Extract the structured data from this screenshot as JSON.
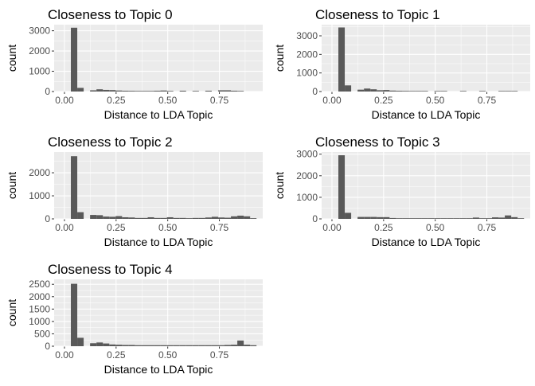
{
  "colors": {
    "panel": "#ebebeb",
    "grid_major": "#ffffff",
    "bar": "#595959",
    "tick_text": "#4d4d4d"
  },
  "chart_data": [
    {
      "type": "bar",
      "title": "Closeness to Topic 0",
      "xlabel": "Distance to LDA Topic",
      "ylabel": "count",
      "xlim": [
        -0.05,
        0.96
      ],
      "ylim": [
        0,
        3300
      ],
      "xticks": [
        0.0,
        0.25,
        0.5,
        0.75
      ],
      "xtick_labels": [
        "0.00",
        "0.25",
        "0.50",
        "0.75"
      ],
      "yticks": [
        0,
        1000,
        2000,
        3000
      ],
      "ytick_labels": [
        "0",
        "1000",
        "2000",
        "3000"
      ],
      "bin_width": 0.031,
      "bins_start": 0.0,
      "values": [
        0,
        3150,
        180,
        0,
        60,
        110,
        80,
        70,
        50,
        40,
        35,
        30,
        30,
        30,
        40,
        50,
        30,
        0,
        40,
        0,
        30,
        0,
        40,
        0,
        60,
        60,
        40,
        30,
        0,
        0
      ]
    },
    {
      "type": "bar",
      "title": "Closeness to Topic 1",
      "xlabel": "Distance to LDA Topic",
      "ylabel": "count",
      "xlim": [
        -0.05,
        0.96
      ],
      "ylim": [
        0,
        3600
      ],
      "xticks": [
        0.0,
        0.25,
        0.5,
        0.75
      ],
      "xtick_labels": [
        "0.00",
        "0.25",
        "0.50",
        "0.75"
      ],
      "yticks": [
        0,
        1000,
        2000,
        3000
      ],
      "ytick_labels": [
        "0",
        "1000",
        "2000",
        "3000"
      ],
      "bin_width": 0.031,
      "bins_start": 0.0,
      "values": [
        0,
        3450,
        330,
        0,
        100,
        160,
        120,
        70,
        80,
        50,
        40,
        35,
        30,
        30,
        30,
        0,
        30,
        30,
        0,
        0,
        30,
        0,
        0,
        30,
        0,
        0,
        30,
        30,
        30,
        0
      ]
    },
    {
      "type": "bar",
      "title": "Closeness to Topic 2",
      "xlabel": "Distance to LDA Topic",
      "ylabel": "count",
      "xlim": [
        -0.05,
        0.96
      ],
      "ylim": [
        0,
        2900
      ],
      "xticks": [
        0.0,
        0.25,
        0.5,
        0.75
      ],
      "xtick_labels": [
        "0.00",
        "0.25",
        "0.50",
        "0.75"
      ],
      "yticks": [
        0,
        1000,
        2000
      ],
      "ytick_labels": [
        "0",
        "1000",
        "2000"
      ],
      "bin_width": 0.031,
      "bins_start": 0.0,
      "values": [
        0,
        2720,
        290,
        0,
        170,
        160,
        100,
        90,
        120,
        70,
        60,
        40,
        40,
        70,
        40,
        40,
        70,
        40,
        40,
        30,
        40,
        40,
        60,
        90,
        60,
        50,
        110,
        140,
        110,
        30
      ]
    },
    {
      "type": "bar",
      "title": "Closeness to Topic 3",
      "xlabel": "Distance to LDA Topic",
      "ylabel": "count",
      "xlim": [
        -0.05,
        0.96
      ],
      "ylim": [
        0,
        3100
      ],
      "xticks": [
        0.0,
        0.25,
        0.5,
        0.75
      ],
      "xtick_labels": [
        "0.00",
        "0.25",
        "0.50",
        "0.75"
      ],
      "yticks": [
        0,
        1000,
        2000,
        3000
      ],
      "ytick_labels": [
        "0",
        "1000",
        "2000",
        "3000"
      ],
      "bin_width": 0.031,
      "bins_start": 0.0,
      "values": [
        0,
        2950,
        280,
        0,
        90,
        90,
        90,
        80,
        80,
        40,
        30,
        30,
        30,
        30,
        30,
        30,
        30,
        30,
        30,
        30,
        30,
        30,
        60,
        30,
        30,
        70,
        60,
        160,
        80,
        30
      ]
    },
    {
      "type": "bar",
      "title": "Closeness to Topic 4",
      "xlabel": "Distance to LDA Topic",
      "ylabel": "count",
      "xlim": [
        -0.05,
        0.96
      ],
      "ylim": [
        0,
        2700
      ],
      "xticks": [
        0.0,
        0.25,
        0.5,
        0.75
      ],
      "xtick_labels": [
        "0.00",
        "0.25",
        "0.50",
        "0.75"
      ],
      "yticks": [
        0,
        500,
        1000,
        1500,
        2000,
        2500
      ],
      "ytick_labels": [
        "0",
        "500",
        "1000",
        "1500",
        "2000",
        "2500"
      ],
      "bin_width": 0.031,
      "bins_start": 0.0,
      "values": [
        0,
        2520,
        340,
        0,
        120,
        150,
        110,
        70,
        60,
        50,
        50,
        40,
        40,
        40,
        40,
        40,
        40,
        40,
        40,
        40,
        40,
        40,
        40,
        40,
        40,
        50,
        60,
        230,
        60,
        40
      ]
    }
  ]
}
